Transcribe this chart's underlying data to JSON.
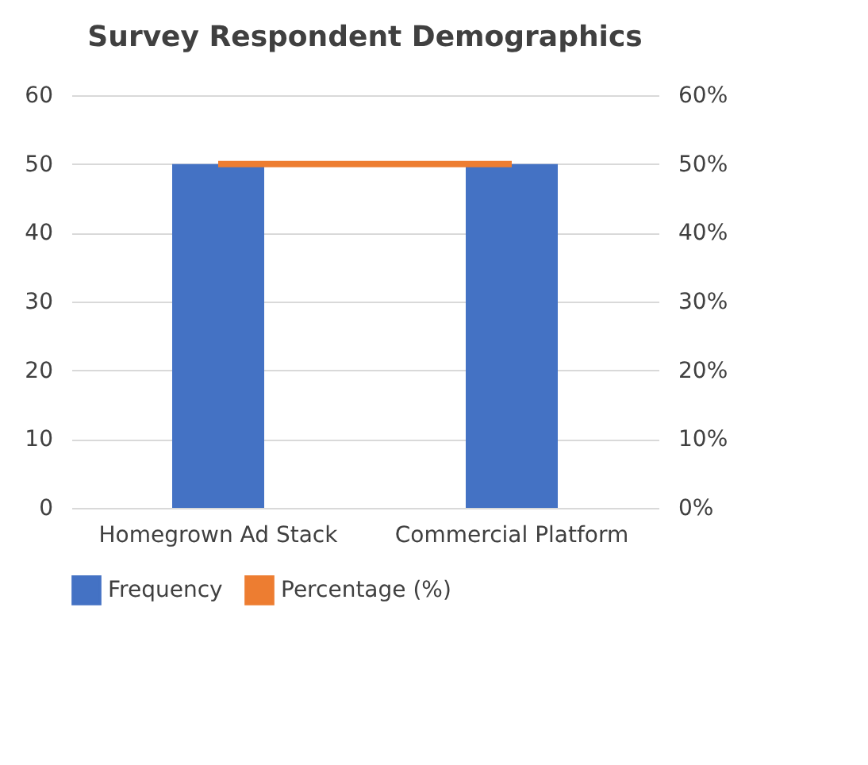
{
  "chart_data": {
    "type": "bar",
    "title": "Survey Respondent Demographics",
    "categories": [
      "Homegrown Ad Stack",
      "Commercial Platform"
    ],
    "series": [
      {
        "name": "Frequency",
        "color": "#4472c4",
        "values": [
          50,
          50
        ]
      },
      {
        "name": "Percentage (%)",
        "color": "#ed7d31",
        "values": [
          50,
          50
        ],
        "type": "line",
        "axis": "y2"
      }
    ],
    "ylim": [
      0,
      60
    ],
    "yticks": [
      0,
      10,
      20,
      30,
      40,
      50,
      60
    ],
    "y2lim": [
      0,
      60
    ],
    "y2ticks": [
      {
        "value": 0,
        "label": "0%"
      },
      {
        "value": 10,
        "label": "10%"
      },
      {
        "value": 20,
        "label": "20%"
      },
      {
        "value": 30,
        "label": "30%"
      },
      {
        "value": 40,
        "label": "40%"
      },
      {
        "value": 50,
        "label": "50%"
      },
      {
        "value": 60,
        "label": "60%"
      }
    ],
    "grid": "y",
    "legend": "bottom",
    "marker": "none",
    "line_style": "solid"
  }
}
